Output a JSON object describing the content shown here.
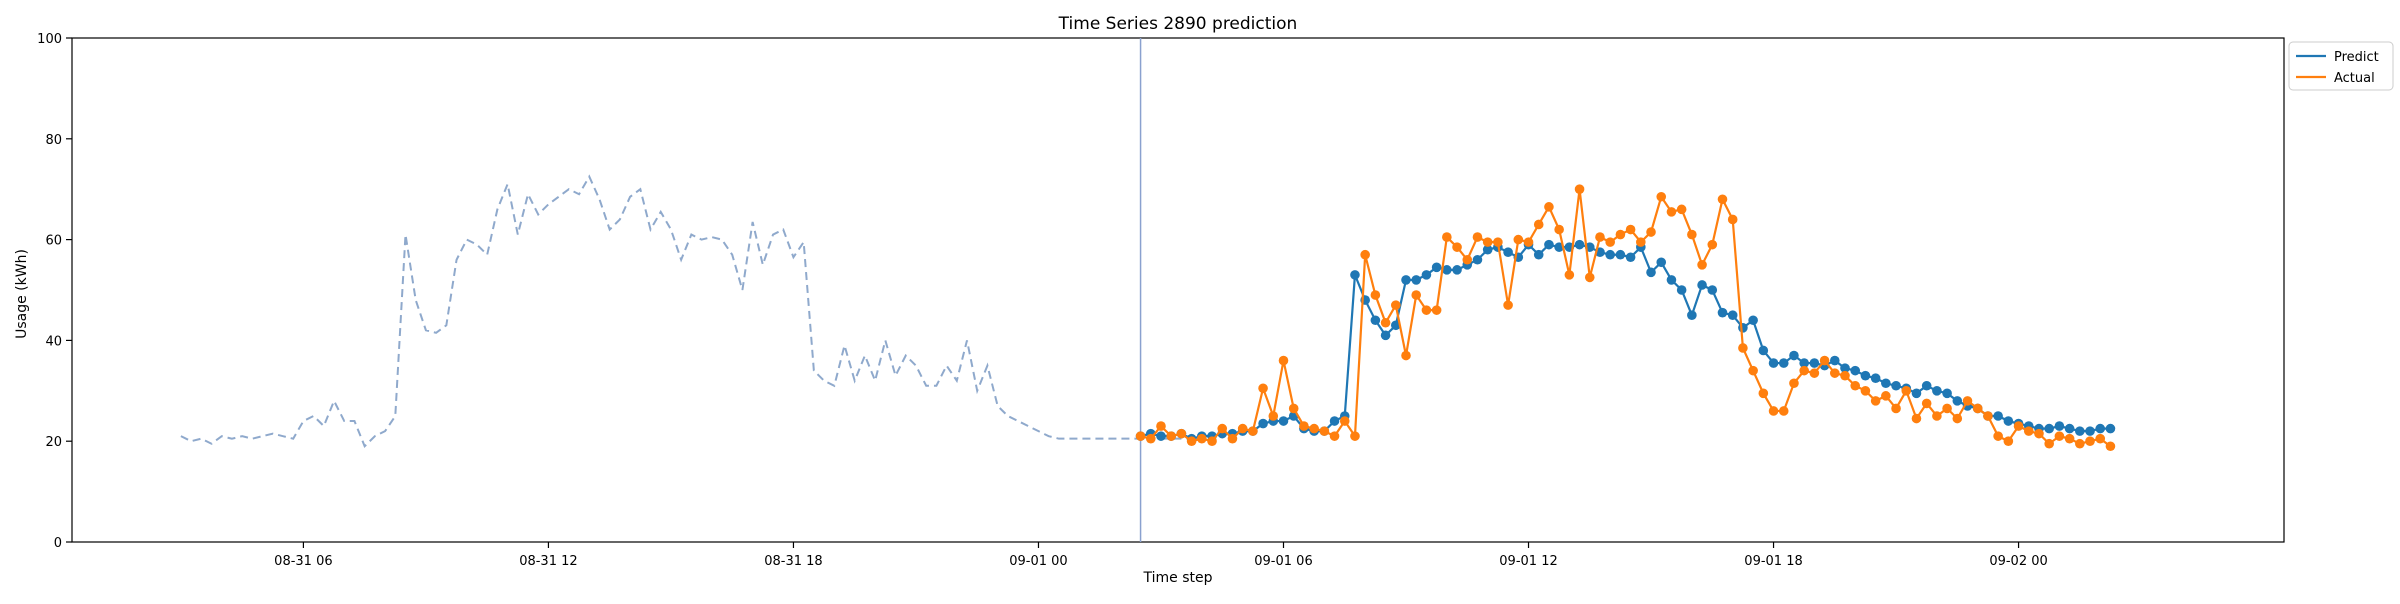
{
  "chart_data": {
    "type": "line",
    "title": "Time Series 2890 prediction",
    "xlabel": "Time step",
    "ylabel": "Usage (kWh)",
    "ylim": [
      0,
      100
    ],
    "yticks": [
      0,
      20,
      40,
      60,
      80,
      100
    ],
    "xlim": [
      "2024-08-31 00:20",
      "2024-09-02 06:30"
    ],
    "xticks": [
      {
        "label": "08-31 06",
        "t": "2024-08-31 06:00"
      },
      {
        "label": "08-31 12",
        "t": "2024-08-31 12:00"
      },
      {
        "label": "08-31 18",
        "t": "2024-08-31 18:00"
      },
      {
        "label": "09-01 00",
        "t": "2024-09-01 00:00"
      },
      {
        "label": "09-01 06",
        "t": "2024-09-01 06:00"
      },
      {
        "label": "09-01 12",
        "t": "2024-09-01 12:00"
      },
      {
        "label": "09-01 18",
        "t": "2024-09-01 18:00"
      },
      {
        "label": "09-02 00",
        "t": "2024-09-02 00:00"
      }
    ],
    "forecast_start": "2024-09-01 02:30",
    "legend_position": "top-right",
    "history": {
      "x_start": "2024-08-31 03:00",
      "interval_min": 15,
      "values": [
        21,
        20,
        20.5,
        19.5,
        21,
        20.5,
        21,
        20.5,
        21,
        21.5,
        21,
        20.5,
        24,
        25,
        23,
        28,
        24,
        24,
        19,
        21,
        22,
        25,
        61,
        48,
        42,
        41.5,
        43,
        56,
        60,
        59,
        57,
        66,
        71,
        61,
        69,
        65,
        67,
        68.5,
        70,
        69,
        72.5,
        68,
        62,
        64,
        68.5,
        70,
        62,
        65.5,
        62,
        56,
        61,
        60,
        60.5,
        60,
        57,
        50,
        63.5,
        55,
        61,
        62,
        56.5,
        59.5,
        34,
        32,
        31,
        39,
        32,
        37,
        32,
        40,
        33,
        37,
        35,
        31,
        31,
        35,
        32,
        40,
        30,
        35,
        27,
        25,
        24,
        23,
        22,
        21,
        20.5,
        20.5,
        20.5,
        20.5,
        20.5,
        20.5,
        20.5,
        20.5,
        20.5,
        20.5,
        20.5,
        20.5,
        20.5,
        20.5,
        20.5
      ]
    },
    "series": [
      {
        "name": "Predict",
        "color": "#1f77b4",
        "x_start": "2024-09-01 02:30",
        "interval_min": 15,
        "values": [
          21,
          21.5,
          21,
          21,
          21.5,
          20.5,
          21,
          21,
          21.5,
          21.5,
          22,
          22,
          23.5,
          24,
          24,
          25,
          22.5,
          22,
          22,
          24,
          25,
          53,
          48,
          44,
          41,
          43,
          52,
          52,
          53,
          54.5,
          54,
          54,
          55,
          56,
          58,
          58.5,
          57.5,
          56.5,
          59,
          57,
          59,
          58.5,
          58.5,
          59,
          58.5,
          57.5,
          57,
          57,
          56.5,
          58.5,
          53.5,
          55.5,
          52,
          50,
          45,
          51,
          50,
          45.5,
          45,
          42.5,
          44,
          38,
          35.5,
          35.5,
          37,
          35.5,
          35.5,
          35,
          36,
          34.5,
          34,
          33,
          32.5,
          31.5,
          31,
          30.5,
          29.5,
          31,
          30,
          29.5,
          28,
          27,
          26.5,
          25,
          25,
          24,
          23.5,
          23,
          22.5,
          22.5,
          23,
          22.5,
          22,
          22,
          22.5,
          22.5
        ]
      },
      {
        "name": "Actual",
        "color": "#ff7f0e",
        "x_start": "2024-09-01 02:30",
        "interval_min": 15,
        "values": [
          21,
          20.5,
          23,
          21,
          21.5,
          20,
          20.5,
          20,
          22.5,
          20.5,
          22.5,
          22,
          30.5,
          25,
          36,
          26.5,
          23,
          22.5,
          22,
          21,
          24,
          21,
          57,
          49,
          43.5,
          47,
          37,
          49,
          46,
          46,
          60.5,
          58.5,
          56,
          60.5,
          59.5,
          59.5,
          47,
          60,
          59.5,
          63,
          66.5,
          62,
          53,
          70,
          52.5,
          60.5,
          59.5,
          61,
          62,
          59.5,
          61.5,
          68.5,
          65.5,
          66,
          61,
          55,
          59,
          68,
          64,
          38.5,
          34,
          29.5,
          26,
          26,
          31.5,
          34,
          33.5,
          36,
          33.5,
          33,
          31,
          30,
          28,
          29,
          26.5,
          30,
          24.5,
          27.5,
          25,
          26.5,
          24.5,
          28,
          26.5,
          25,
          21,
          20,
          23,
          22,
          21.5,
          19.5,
          21,
          20.5,
          19.5,
          20,
          20.5,
          19
        ]
      }
    ]
  }
}
